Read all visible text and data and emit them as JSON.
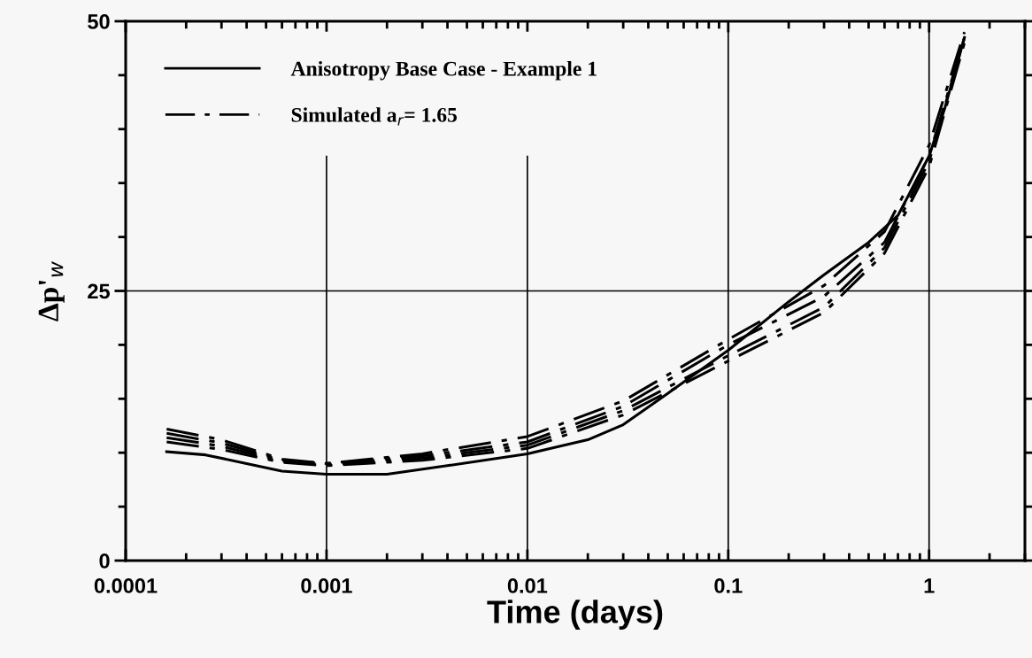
{
  "chart_data": {
    "type": "line",
    "xlabel": "Time (days)",
    "ylabel": "Δp'$_{w}$",
    "log": "x",
    "xlim": [
      0.0001,
      3
    ],
    "xticks": [
      0.0001,
      0.001,
      0.01,
      0.1,
      1
    ],
    "ylim": [
      0,
      50
    ],
    "yticks": [
      0,
      {
        "value": 5,
        "label": null
      },
      {
        "value": 10,
        "label": null
      },
      {
        "value": 15,
        "label": null
      },
      {
        "value": 20,
        "label": null
      },
      25,
      {
        "value": 30,
        "label": null
      },
      {
        "value": 35,
        "label": null
      },
      {
        "value": 40,
        "label": null
      },
      {
        "value": 45,
        "label": null
      },
      50
    ],
    "grid": true,
    "legend": "top left",
    "series": [
      {
        "name": "Anisotropy Base Case - Example 1",
        "color": "#000000",
        "line_style": "solid",
        "x": [
          0.00016,
          0.00025,
          0.0004,
          0.0006,
          0.001,
          0.002,
          0.004,
          0.01,
          0.02,
          0.03,
          0.05,
          0.1,
          0.2,
          0.3,
          0.5,
          0.7,
          1.0,
          1.2,
          1.5
        ],
        "values": [
          10.1,
          9.8,
          9.0,
          8.3,
          8.0,
          8.0,
          8.8,
          9.9,
          11.2,
          12.6,
          15.5,
          19.5,
          24,
          26.5,
          29.5,
          32,
          37.5,
          42,
          48.5
        ]
      },
      {
        "name": "Simulated a$_{r}$= 1.65",
        "color": "#000000",
        "line_style": "dashdot",
        "x": [
          0.00016,
          0.0003,
          0.0006,
          0.001,
          0.003,
          0.01,
          0.03,
          0.1,
          0.3,
          0.6,
          1.0,
          1.5
        ],
        "values": [
          12.2,
          11.2,
          9.4,
          9.0,
          9.9,
          11.5,
          14.8,
          20.5,
          25.5,
          30.5,
          38.5,
          49
        ]
      },
      {
        "color": "#000000",
        "line_style": "dashdot",
        "x": [
          0.00016,
          0.0003,
          0.0006,
          0.001,
          0.003,
          0.01,
          0.03,
          0.1,
          0.3,
          0.6,
          1.0,
          1.5
        ],
        "values": [
          11.8,
          10.9,
          9.3,
          9.0,
          9.7,
          11.0,
          14.3,
          20.0,
          24.5,
          29.5,
          37.5,
          48.5
        ]
      },
      {
        "color": "#000000",
        "line_style": "dashdot",
        "x": [
          0.00016,
          0.0003,
          0.0006,
          0.001,
          0.003,
          0.01,
          0.03,
          0.1,
          0.3,
          0.6,
          1.0,
          1.5
        ],
        "values": [
          11.4,
          10.6,
          9.2,
          8.9,
          9.5,
          10.7,
          13.9,
          19.0,
          23.5,
          29.0,
          37.0,
          48.5
        ]
      },
      {
        "color": "#000000",
        "line_style": "dashdot",
        "x": [
          0.00016,
          0.0003,
          0.0006,
          0.001,
          0.003,
          0.01,
          0.03,
          0.1,
          0.3,
          0.6,
          1.0,
          1.5
        ],
        "values": [
          11.0,
          10.3,
          9.1,
          8.8,
          9.3,
          10.4,
          13.5,
          18.5,
          23.0,
          28.5,
          36.5,
          48.0
        ]
      }
    ]
  }
}
